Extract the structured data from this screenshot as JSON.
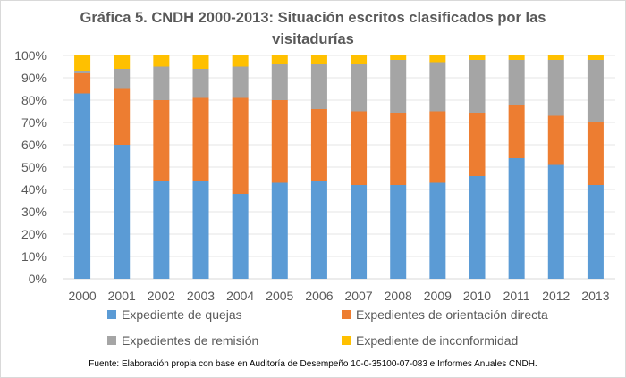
{
  "title_line1": "Gráfica 5. CNDH 2000-2013: Situación escritos clasificados por las",
  "title_line2": "visitadurías",
  "source": "Fuente: Elaboración propia con base en Auditoría de Desempeño 10-0-35100-07-083 e Informes Anuales CNDH.",
  "chart_data": {
    "type": "bar",
    "stacked": true,
    "title": "Gráfica 5. CNDH 2000-2013: Situación escritos clasificados por las visitadurías",
    "categories": [
      "2000",
      "2001",
      "2002",
      "2003",
      "2004",
      "2005",
      "2006",
      "2007",
      "2008",
      "2009",
      "2010",
      "2011",
      "2012",
      "2013"
    ],
    "y_ticks": [
      "0%",
      "10%",
      "20%",
      "30%",
      "40%",
      "50%",
      "60%",
      "70%",
      "80%",
      "90%",
      "100%"
    ],
    "ylim": [
      0,
      100
    ],
    "xlabel": "",
    "ylabel": "",
    "legend_position": "bottom",
    "series": [
      {
        "name": "Expediente de quejas",
        "color": "#5B9BD5",
        "values": [
          83,
          60,
          44,
          44,
          38,
          43,
          44,
          42,
          42,
          43,
          46,
          54,
          51,
          42
        ]
      },
      {
        "name": "Expedientes de orientación directa",
        "color": "#ED7D31",
        "values": [
          9,
          25,
          36,
          37,
          43,
          37,
          32,
          33,
          32,
          32,
          28,
          24,
          22,
          28
        ]
      },
      {
        "name": "Expedientes de remisión",
        "color": "#A5A5A5",
        "values": [
          1,
          9,
          15,
          13,
          14,
          16,
          20,
          21,
          24,
          22,
          24,
          20,
          25,
          28
        ]
      },
      {
        "name": "Expediente de inconformidad",
        "color": "#FFC000",
        "values": [
          7,
          6,
          5,
          6,
          5,
          4,
          4,
          4,
          2,
          3,
          2,
          2,
          2,
          2
        ]
      }
    ]
  }
}
